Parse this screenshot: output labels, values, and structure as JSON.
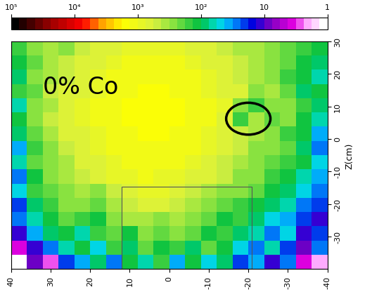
{
  "chart_data": {
    "type": "heatmap",
    "annotations": [
      "0% Co"
    ],
    "ylabel": "Z(cm)",
    "xlim": [
      40,
      -40
    ],
    "xticks": [
      40,
      30,
      20,
      10,
      0,
      -10,
      -20,
      -30,
      -40
    ],
    "ylim": [
      -40,
      30
    ],
    "yticks": [
      -30,
      -20,
      -10,
      0,
      10,
      20,
      30
    ],
    "log": true,
    "colorbar_lim": [
      1,
      100000
    ],
    "colorbar_ticks": [
      {
        "value": 100000,
        "label": "10⁵"
      },
      {
        "value": 10000,
        "label": "10⁴"
      },
      {
        "value": 1000,
        "label": "10³"
      },
      {
        "value": 100,
        "label": "10²"
      },
      10,
      1
    ],
    "cells": [
      [
        150,
        300,
        400,
        300,
        500,
        600,
        700,
        800,
        900,
        900,
        800,
        700,
        600,
        500,
        400,
        400,
        300,
        200,
        150,
        100
      ],
      [
        100,
        200,
        400,
        500,
        600,
        700,
        900,
        1000,
        1100,
        1100,
        1000,
        900,
        700,
        600,
        500,
        400,
        300,
        200,
        100,
        80
      ],
      [
        80,
        300,
        400,
        500,
        700,
        800,
        1000,
        1200,
        1300,
        1300,
        1200,
        1000,
        800,
        700,
        500,
        400,
        300,
        150,
        100,
        60
      ],
      [
        150,
        200,
        500,
        600,
        700,
        900,
        1100,
        1300,
        1500,
        1400,
        1300,
        1100,
        900,
        700,
        600,
        300,
        400,
        200,
        80,
        100
      ],
      [
        60,
        300,
        400,
        600,
        800,
        1000,
        1200,
        1400,
        1600,
        1500,
        1400,
        1200,
        1000,
        800,
        300,
        150,
        300,
        250,
        150,
        80
      ],
      [
        100,
        250,
        500,
        600,
        800,
        1000,
        1200,
        1500,
        1600,
        1600,
        1400,
        1200,
        1000,
        700,
        150,
        400,
        200,
        300,
        100,
        60
      ],
      [
        80,
        200,
        400,
        600,
        700,
        900,
        1100,
        1300,
        1500,
        1400,
        1300,
        1100,
        900,
        700,
        500,
        400,
        300,
        150,
        100,
        40
      ],
      [
        40,
        150,
        300,
        500,
        700,
        800,
        1000,
        1200,
        1300,
        1300,
        1200,
        1000,
        800,
        600,
        500,
        300,
        250,
        200,
        80,
        30
      ],
      [
        60,
        200,
        300,
        400,
        600,
        700,
        900,
        1000,
        1100,
        1100,
        1000,
        900,
        700,
        500,
        400,
        300,
        200,
        150,
        100,
        50
      ],
      [
        30,
        100,
        250,
        400,
        500,
        600,
        800,
        900,
        1000,
        900,
        900,
        700,
        600,
        500,
        300,
        250,
        150,
        100,
        60,
        40
      ],
      [
        50,
        150,
        200,
        300,
        400,
        300,
        500,
        700,
        800,
        800,
        700,
        500,
        400,
        300,
        250,
        200,
        100,
        80,
        50,
        30
      ],
      [
        20,
        80,
        150,
        250,
        300,
        200,
        400,
        500,
        600,
        600,
        500,
        400,
        300,
        200,
        150,
        100,
        80,
        60,
        30,
        20
      ],
      [
        30,
        60,
        100,
        200,
        150,
        100,
        300,
        400,
        400,
        300,
        400,
        300,
        200,
        100,
        150,
        80,
        50,
        40,
        20,
        10
      ],
      [
        10,
        40,
        80,
        100,
        60,
        150,
        200,
        100,
        300,
        200,
        300,
        200,
        100,
        150,
        80,
        60,
        30,
        50,
        10,
        20
      ],
      [
        4,
        10,
        30,
        60,
        100,
        50,
        150,
        80,
        200,
        100,
        150,
        80,
        200,
        100,
        50,
        30,
        60,
        20,
        8,
        30
      ],
      [
        1,
        8,
        3,
        20,
        40,
        80,
        30,
        100,
        60,
        150,
        40,
        100,
        50,
        80,
        20,
        40,
        10,
        30,
        4,
        2
      ]
    ]
  }
}
